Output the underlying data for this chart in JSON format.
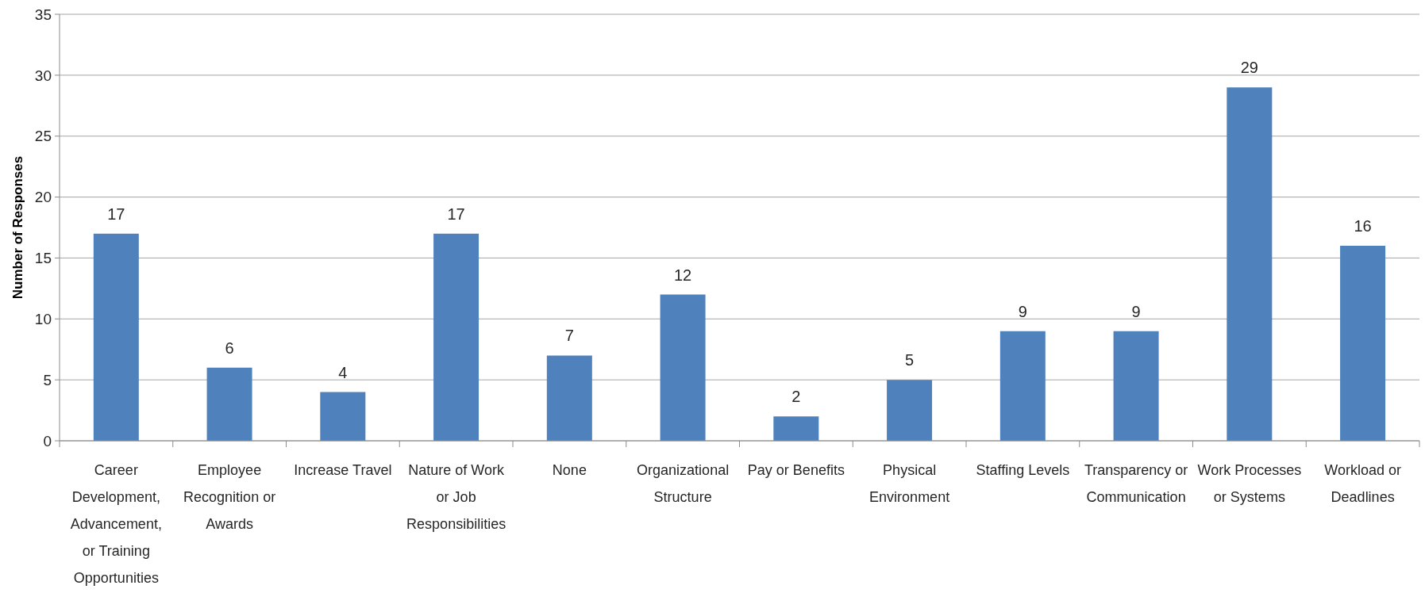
{
  "chart_data": {
    "type": "bar",
    "ylabel": "Number of Responses",
    "categories": [
      "Career Development, Advancement, or Training Opportunities",
      "Employee Recognition or Awards",
      "Increase Travel",
      "Nature of Work or Job Responsibilities",
      "None",
      "Organizational Structure",
      "Pay or Benefits",
      "Physical Environment",
      "Staffing Levels",
      "Transparency or Communication",
      "Work Processes or Systems",
      "Workload or Deadlines"
    ],
    "values": [
      17,
      6,
      4,
      17,
      7,
      12,
      2,
      5,
      9,
      9,
      29,
      16
    ],
    "color": "#4f81bd",
    "ylim": [
      0,
      35
    ],
    "yticks": [
      0,
      5,
      10,
      15,
      20,
      25,
      30,
      35
    ],
    "grid": "y",
    "data_labels": true
  }
}
